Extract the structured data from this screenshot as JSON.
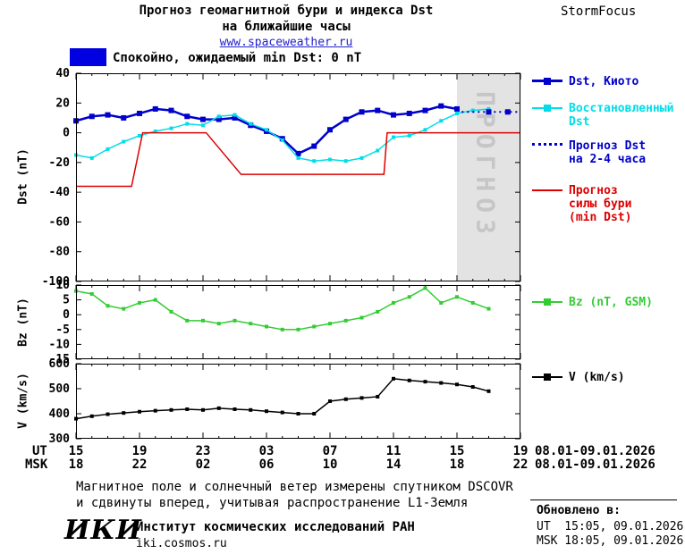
{
  "header": {
    "title_line1": "Прогноз геомагнитной бури и индекса Dst",
    "title_line2": "на ближайшие часы",
    "site_link": "www.spaceweather.ru",
    "brand": "StormFocus",
    "status_legend": {
      "swatch_color": "#0000e0",
      "label": "Спокойно, ожидаемый min Dst: 0 nT"
    }
  },
  "chart_data": [
    {
      "type": "line",
      "title": "Прогноз геомагнитной бури и индекса Dst на ближайшие часы",
      "ylabel": "Dst (nT)",
      "ylim": [
        -100,
        40
      ],
      "yticks": [
        40,
        20,
        0,
        -20,
        -40,
        -60,
        -80,
        -100
      ],
      "xlim": [
        0,
        28
      ],
      "xmajor": 4,
      "xminor": 1,
      "forecast_region": [
        24,
        28
      ],
      "forecast_fill": "#e3e3e3",
      "forecast_label": "ПРОГНОЗ",
      "forecast_label_color": "#c6c6c6",
      "series": [
        {
          "name": "Dst, Киото",
          "color": "#0000cc",
          "lw": 2.5,
          "marker": "square",
          "ms": 6,
          "x": [
            0,
            1,
            2,
            3,
            4,
            5,
            6,
            7,
            8,
            9,
            10,
            11,
            12,
            13,
            14,
            15,
            16,
            17,
            18,
            19,
            20,
            21,
            22,
            23,
            24
          ],
          "y": [
            8,
            11,
            12,
            10,
            13,
            16,
            15,
            11,
            9,
            9,
            10,
            5,
            1,
            -4,
            -14,
            -9,
            2,
            9,
            14,
            15,
            12,
            13,
            15,
            18,
            16
          ]
        },
        {
          "name": "Восстановленный Dst",
          "color": "#00dde8",
          "lw": 1.5,
          "marker": "square",
          "ms": 4,
          "x": [
            0,
            1,
            2,
            3,
            4,
            5,
            6,
            7,
            8,
            9,
            10,
            11,
            12,
            13,
            14,
            15,
            16,
            17,
            18,
            19,
            20,
            21,
            22,
            23,
            24,
            25,
            26
          ],
          "y": [
            -15,
            -17,
            -11,
            -6,
            -2,
            1,
            3,
            6,
            5,
            11,
            12,
            6,
            2,
            -5,
            -17,
            -19,
            -18,
            -19,
            -17,
            -12,
            -3,
            -2,
            2,
            8,
            13,
            15,
            16
          ]
        },
        {
          "name": "Прогноз Dst на 2-4 часа",
          "color": "#0000cc",
          "lw": 2,
          "dash": "2,4",
          "x": [
            24.3,
            28
          ],
          "y": [
            14,
            14
          ]
        },
        {
          "name": "Прогноз силы бури (min Dst)",
          "color": "#dd0000",
          "lw": 1.5,
          "x": [
            0,
            3.5,
            4.2,
            8.2,
            10.4,
            19.4,
            19.6,
            28
          ],
          "y": [
            -36,
            -36,
            0,
            0,
            -28,
            -28,
            0,
            0
          ]
        },
        {
          "color": "#0000cc",
          "line": false,
          "marker": "square",
          "ms": 6,
          "x": [
            26,
            27.2
          ],
          "y": [
            14,
            14
          ]
        }
      ]
    },
    {
      "type": "line",
      "ylabel": "Bz (nT)",
      "ylim": [
        -15,
        10
      ],
      "yticks": [
        10,
        5,
        0,
        -5,
        -10,
        -15
      ],
      "xlim": [
        0,
        28
      ],
      "xmajor": 4,
      "xminor": 1,
      "series": [
        {
          "name": "Bz (nT, GSM)",
          "color": "#33cc33",
          "lw": 1.5,
          "marker": "square",
          "ms": 4,
          "x": [
            0,
            1,
            2,
            3,
            4,
            5,
            6,
            7,
            8,
            9,
            10,
            11,
            12,
            13,
            14,
            15,
            16,
            17,
            18,
            19,
            20,
            21,
            22,
            23,
            24,
            25,
            26
          ],
          "y": [
            8,
            7,
            3,
            2,
            4,
            5,
            1,
            -2,
            -2,
            -3,
            -2,
            -3,
            -4,
            -5,
            -5,
            -4,
            -3,
            -2,
            -1,
            1,
            4,
            6,
            9,
            4,
            6,
            4,
            2
          ]
        }
      ]
    },
    {
      "type": "line",
      "ylabel": "V (km/s)",
      "ylim": [
        300,
        600
      ],
      "yticks": [
        600,
        500,
        400,
        300
      ],
      "xlim": [
        0,
        28
      ],
      "xmajor": 4,
      "xminor": 1,
      "series": [
        {
          "name": "V (km/s)",
          "color": "#000000",
          "lw": 1.5,
          "marker": "square",
          "ms": 4,
          "x": [
            0,
            1,
            2,
            3,
            4,
            5,
            6,
            7,
            8,
            9,
            10,
            11,
            12,
            13,
            14,
            15,
            16,
            17,
            18,
            19,
            20,
            21,
            22,
            23,
            24,
            25,
            26
          ],
          "y": [
            380,
            390,
            398,
            403,
            408,
            412,
            415,
            418,
            415,
            422,
            418,
            415,
            410,
            405,
            400,
            400,
            450,
            458,
            463,
            468,
            540,
            533,
            528,
            523,
            517,
            507,
            490
          ]
        }
      ]
    }
  ],
  "axis": {
    "ut_label": "UT",
    "msk_label": "MSK",
    "ut_ticks": [
      "15",
      "19",
      "23",
      "03",
      "07",
      "11",
      "15",
      "19"
    ],
    "msk_ticks": [
      "18",
      "22",
      "02",
      "06",
      "10",
      "14",
      "18",
      "22"
    ],
    "ut_daterange": "08.01-09.01.2026",
    "msk_daterange": "08.01-09.01.2026"
  },
  "footnote": {
    "line1": "Магнитное поле и солнечный ветер измерены спутником DSCOVR",
    "line2": "и сдвинуты вперед, учитывая распространение L1-Земля"
  },
  "footer": {
    "logo": "ИКИ",
    "institute": "Институт космических исследований РАН",
    "site": "iki.cosmos.ru",
    "updated_label": "Обновлено в:",
    "updated_ut": "UT  15:05, 09.01.2026",
    "updated_msk": "MSK 18:05, 09.01.2026"
  }
}
